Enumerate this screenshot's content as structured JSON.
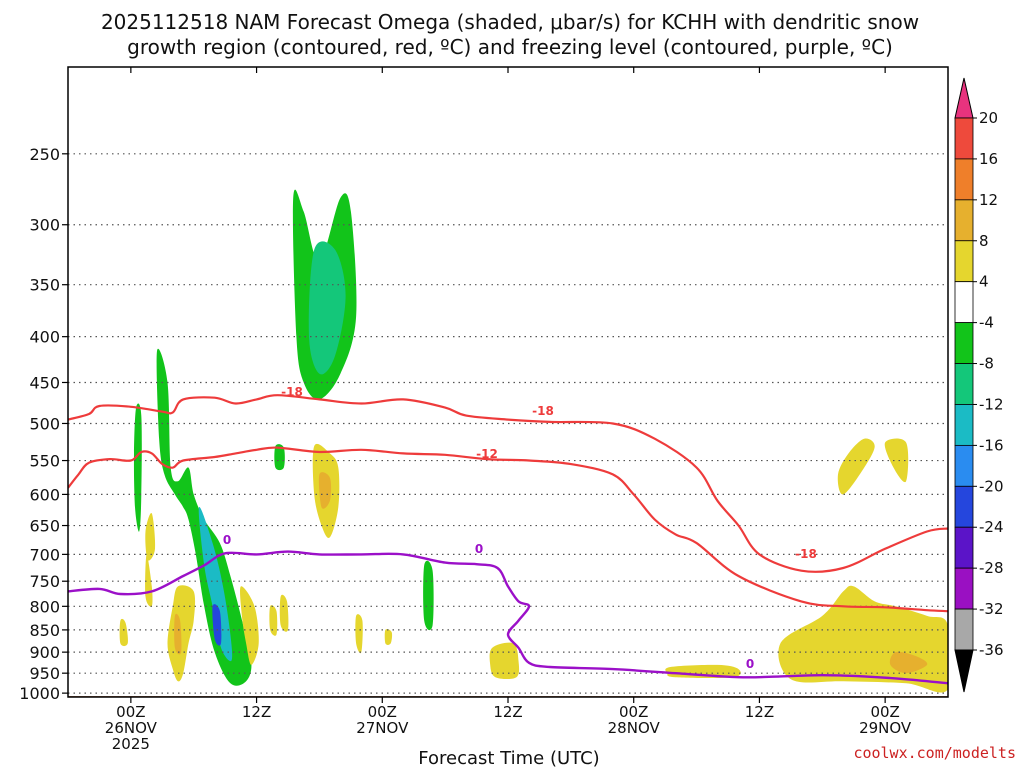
{
  "colors": {
    "red_contour": "#ee3b3b",
    "purple_contour": "#9b10c8",
    "terrain": "#a0522d",
    "credit": "#cc2222"
  },
  "chart_data": {
    "type": "heatmap",
    "title_line1": "2025112518 NAM Forecast Omega (shaded, μbar/s) for KCHH with dendritic snow",
    "title_line2": "growth region (contoured, red, ºC) and freezing level (contoured, purple, ºC)",
    "xlabel": "Forecast Time (UTC)",
    "x_ticks": [
      {
        "hour": 6,
        "line1": "00Z",
        "line2": "26NOV",
        "line3": "2025"
      },
      {
        "hour": 18,
        "line1": "12Z",
        "line2": "",
        "line3": ""
      },
      {
        "hour": 30,
        "line1": "00Z",
        "line2": "27NOV",
        "line3": ""
      },
      {
        "hour": 42,
        "line1": "12Z",
        "line2": "",
        "line3": ""
      },
      {
        "hour": 54,
        "line1": "00Z",
        "line2": "28NOV",
        "line3": ""
      },
      {
        "hour": 66,
        "line1": "12Z",
        "line2": "",
        "line3": ""
      },
      {
        "hour": 78,
        "line1": "00Z",
        "line2": "29NOV",
        "line3": ""
      }
    ],
    "xlim": [
      0,
      84
    ],
    "y_ticks": [
      250,
      300,
      350,
      400,
      450,
      500,
      550,
      600,
      650,
      700,
      750,
      800,
      850,
      900,
      950,
      1000
    ],
    "ylim": [
      1010,
      200
    ],
    "y_scale": "log-pressure",
    "grid": true,
    "colorbar": {
      "labels": [
        "20",
        "16",
        "12",
        "8",
        "4",
        "-4",
        "-8",
        "-12",
        "-16",
        "-20",
        "-24",
        "-28",
        "-32",
        "-36"
      ],
      "colors": [
        "#e8337e",
        "#ee4a3c",
        "#ef7f2a",
        "#e6b02e",
        "#e5d62e",
        "#ffffff",
        "#12c41a",
        "#14c77a",
        "#1bbbc5",
        "#2a8cf0",
        "#2546dd",
        "#5b14c8",
        "#9a10c2",
        "#a8a8a8",
        "#000000"
      ]
    },
    "contours_red": [
      {
        "label": "-18",
        "points": [
          [
            0,
            495
          ],
          [
            2,
            488
          ],
          [
            3,
            478
          ],
          [
            6,
            479
          ],
          [
            9,
            485
          ],
          [
            10,
            486
          ],
          [
            11,
            470
          ],
          [
            14,
            468
          ],
          [
            16,
            475
          ],
          [
            18,
            470
          ],
          [
            20,
            465
          ],
          [
            24,
            470
          ],
          [
            28,
            475
          ],
          [
            32,
            470
          ],
          [
            36,
            480
          ],
          [
            38,
            490
          ],
          [
            42,
            495
          ],
          [
            46,
            498
          ],
          [
            52,
            500
          ],
          [
            56,
            520
          ],
          [
            60,
            560
          ],
          [
            62,
            610
          ],
          [
            64,
            650
          ],
          [
            66,
            700
          ],
          [
            70,
            730
          ],
          [
            74,
            725
          ],
          [
            78,
            690
          ],
          [
            82,
            660
          ],
          [
            84,
            655
          ]
        ]
      },
      {
        "label": "-12",
        "points": [
          [
            0,
            590
          ],
          [
            1,
            570
          ],
          [
            2,
            553
          ],
          [
            4,
            548
          ],
          [
            6,
            550
          ],
          [
            7,
            538
          ],
          [
            8,
            540
          ],
          [
            9,
            555
          ],
          [
            10,
            560
          ],
          [
            11,
            550
          ],
          [
            14,
            545
          ],
          [
            16,
            540
          ],
          [
            18,
            535
          ],
          [
            20,
            532
          ],
          [
            24,
            538
          ],
          [
            28,
            535
          ],
          [
            32,
            540
          ],
          [
            36,
            542
          ],
          [
            40,
            548
          ],
          [
            44,
            550
          ],
          [
            48,
            555
          ],
          [
            52,
            570
          ],
          [
            54,
            600
          ],
          [
            56,
            640
          ],
          [
            58,
            665
          ],
          [
            60,
            680
          ],
          [
            64,
            740
          ],
          [
            70,
            790
          ],
          [
            74,
            800
          ],
          [
            78,
            802
          ],
          [
            82,
            808
          ],
          [
            84,
            810
          ]
        ]
      }
    ],
    "contour_purple": {
      "label": "0",
      "points": [
        [
          0,
          770
        ],
        [
          3,
          765
        ],
        [
          5,
          775
        ],
        [
          8,
          770
        ],
        [
          11,
          740
        ],
        [
          13,
          720
        ],
        [
          15,
          698
        ],
        [
          18,
          700
        ],
        [
          21,
          695
        ],
        [
          24,
          700
        ],
        [
          28,
          700
        ],
        [
          32,
          700
        ],
        [
          36,
          715
        ],
        [
          39,
          718
        ],
        [
          41,
          725
        ],
        [
          42,
          760
        ],
        [
          43,
          790
        ],
        [
          44,
          800
        ],
        [
          43,
          830
        ],
        [
          42,
          860
        ],
        [
          43,
          890
        ],
        [
          44,
          925
        ],
        [
          46,
          935
        ],
        [
          52,
          940
        ],
        [
          58,
          950
        ],
        [
          64,
          960
        ],
        [
          68,
          958
        ],
        [
          72,
          955
        ],
        [
          76,
          958
        ],
        [
          80,
          965
        ],
        [
          84,
          975
        ]
      ]
    },
    "omega_regions": [
      {
        "value": -8,
        "points": [
          [
            21.5,
            280
          ],
          [
            22.5,
            290
          ],
          [
            24,
            330
          ],
          [
            26,
            280
          ],
          [
            27,
            290
          ],
          [
            27.5,
            380
          ],
          [
            26,
            440
          ],
          [
            24,
            470
          ],
          [
            22.5,
            450
          ],
          [
            21.8,
            400
          ]
        ]
      },
      {
        "value": -12,
        "points": [
          [
            23.5,
            320
          ],
          [
            25.5,
            320
          ],
          [
            26.5,
            360
          ],
          [
            25.5,
            420
          ],
          [
            24,
            440
          ],
          [
            23,
            400
          ]
        ]
      },
      {
        "value": -8,
        "points": [
          [
            8.5,
            415
          ],
          [
            9.5,
            450
          ],
          [
            9.8,
            560
          ],
          [
            10.5,
            580
          ],
          [
            11.5,
            560
          ],
          [
            12,
            600
          ],
          [
            13,
            640
          ],
          [
            14.5,
            680
          ],
          [
            15.5,
            740
          ],
          [
            16.5,
            820
          ],
          [
            17.5,
            920
          ],
          [
            17,
            970
          ],
          [
            15.5,
            975
          ],
          [
            14,
            900
          ],
          [
            13,
            800
          ],
          [
            12.2,
            700
          ],
          [
            11.5,
            640
          ],
          [
            11,
            620
          ],
          [
            10.2,
            600
          ],
          [
            9.2,
            570
          ],
          [
            8.7,
            520
          ]
        ]
      },
      {
        "value": -8,
        "points": [
          [
            6.5,
            480
          ],
          [
            7,
            490
          ],
          [
            7,
            600
          ],
          [
            6.8,
            660
          ],
          [
            6.4,
            620
          ],
          [
            6.3,
            540
          ]
        ]
      },
      {
        "value": -16,
        "points": [
          [
            12.5,
            620
          ],
          [
            13.8,
            680
          ],
          [
            14.8,
            760
          ],
          [
            15.5,
            860
          ],
          [
            15.6,
            920
          ],
          [
            14.6,
            890
          ],
          [
            13.8,
            800
          ],
          [
            13,
            720
          ]
        ]
      },
      {
        "value": -24,
        "points": [
          [
            13.8,
            800
          ],
          [
            14.5,
            810
          ],
          [
            14.6,
            880
          ],
          [
            14,
            870
          ]
        ]
      },
      {
        "value": -8,
        "points": [
          [
            34,
            720
          ],
          [
            34.8,
            730
          ],
          [
            34.8,
            840
          ],
          [
            34,
            830
          ]
        ]
      },
      {
        "value": -8,
        "points": [
          [
            19.8,
            530
          ],
          [
            20.6,
            532
          ],
          [
            20.6,
            560
          ],
          [
            19.8,
            560
          ]
        ]
      },
      {
        "value": 4,
        "points": [
          [
            23.5,
            530
          ],
          [
            25,
            540
          ],
          [
            25.8,
            560
          ],
          [
            25.8,
            620
          ],
          [
            25,
            670
          ],
          [
            24.2,
            650
          ],
          [
            23.5,
            600
          ]
        ]
      },
      {
        "value": 8,
        "points": [
          [
            24,
            570
          ],
          [
            25,
            575
          ],
          [
            25,
            610
          ],
          [
            24.2,
            620
          ]
        ]
      },
      {
        "value": 4,
        "points": [
          [
            10.5,
            760
          ],
          [
            12,
            770
          ],
          [
            12,
            830
          ],
          [
            11.5,
            880
          ],
          [
            11,
            950
          ],
          [
            10.5,
            970
          ],
          [
            10,
            940
          ],
          [
            9.5,
            880
          ],
          [
            10,
            800
          ]
        ]
      },
      {
        "value": 8,
        "points": [
          [
            10.2,
            820
          ],
          [
            10.7,
            830
          ],
          [
            10.8,
            900
          ],
          [
            10.2,
            890
          ]
        ]
      },
      {
        "value": 4,
        "points": [
          [
            16.5,
            760
          ],
          [
            17.8,
            800
          ],
          [
            18.2,
            880
          ],
          [
            17.5,
            930
          ],
          [
            17,
            880
          ],
          [
            16.6,
            820
          ]
        ]
      },
      {
        "value": 4,
        "points": [
          [
            7.5,
            700
          ],
          [
            8,
            760
          ],
          [
            8,
            800
          ],
          [
            7.4,
            780
          ]
        ]
      },
      {
        "value": 4,
        "points": [
          [
            7.4,
            660
          ],
          [
            8,
            630
          ],
          [
            8.3,
            690
          ],
          [
            7.6,
            710
          ]
        ]
      },
      {
        "value": 4,
        "points": [
          [
            5,
            830
          ],
          [
            5.5,
            835
          ],
          [
            5.7,
            880
          ],
          [
            5,
            880
          ]
        ]
      },
      {
        "value": 4,
        "points": [
          [
            20.3,
            780
          ],
          [
            20.9,
            790
          ],
          [
            21,
            850
          ],
          [
            20.3,
            840
          ]
        ]
      },
      {
        "value": 4,
        "points": [
          [
            19.3,
            800
          ],
          [
            19.9,
            810
          ],
          [
            19.9,
            860
          ],
          [
            19.3,
            850
          ]
        ]
      },
      {
        "value": 4,
        "points": [
          [
            27.5,
            820
          ],
          [
            28.1,
            830
          ],
          [
            28,
            900
          ],
          [
            27.5,
            880
          ]
        ]
      },
      {
        "value": 4,
        "points": [
          [
            30.3,
            850
          ],
          [
            30.9,
            855
          ],
          [
            30.8,
            880
          ],
          [
            30.3,
            880
          ]
        ]
      },
      {
        "value": 4,
        "points": [
          [
            40.5,
            890
          ],
          [
            42.5,
            880
          ],
          [
            43,
            920
          ],
          [
            42.8,
            960
          ],
          [
            40.8,
            960
          ],
          [
            40.3,
            930
          ]
        ]
      },
      {
        "value": 4,
        "points": [
          [
            57.5,
            935
          ],
          [
            62,
            930
          ],
          [
            64,
            940
          ],
          [
            63.5,
            960
          ],
          [
            58,
            960
          ],
          [
            57.2,
            950
          ]
        ]
      },
      {
        "value": 4,
        "points": [
          [
            68,
            880
          ],
          [
            72,
            820
          ],
          [
            74,
            770
          ],
          [
            75,
            760
          ],
          [
            77,
            790
          ],
          [
            79,
            800
          ],
          [
            82,
            820
          ],
          [
            84,
            840
          ],
          [
            84,
            990
          ],
          [
            80,
            975
          ],
          [
            74,
            970
          ],
          [
            69,
            965
          ]
        ]
      },
      {
        "value": 8,
        "points": [
          [
            79,
            900
          ],
          [
            81,
            910
          ],
          [
            82,
            930
          ],
          [
            80,
            950
          ],
          [
            78.5,
            930
          ]
        ]
      },
      {
        "value": 4,
        "points": [
          [
            73.5,
            570
          ],
          [
            74.5,
            540
          ],
          [
            76,
            520
          ],
          [
            77,
            530
          ],
          [
            76,
            560
          ],
          [
            74,
            600
          ]
        ]
      },
      {
        "value": 4,
        "points": [
          [
            78,
            525
          ],
          [
            80,
            525
          ],
          [
            80,
            580
          ],
          [
            78.8,
            560
          ]
        ]
      }
    ]
  },
  "contour_labels": {
    "red_upper": "-18",
    "red_upper_right": "-18",
    "red_middle": "-12",
    "red_low_right": "-18",
    "purple_left": "0",
    "purple_mid": "0",
    "purple_right": "0"
  },
  "credit": "coolwx.com/modelts"
}
